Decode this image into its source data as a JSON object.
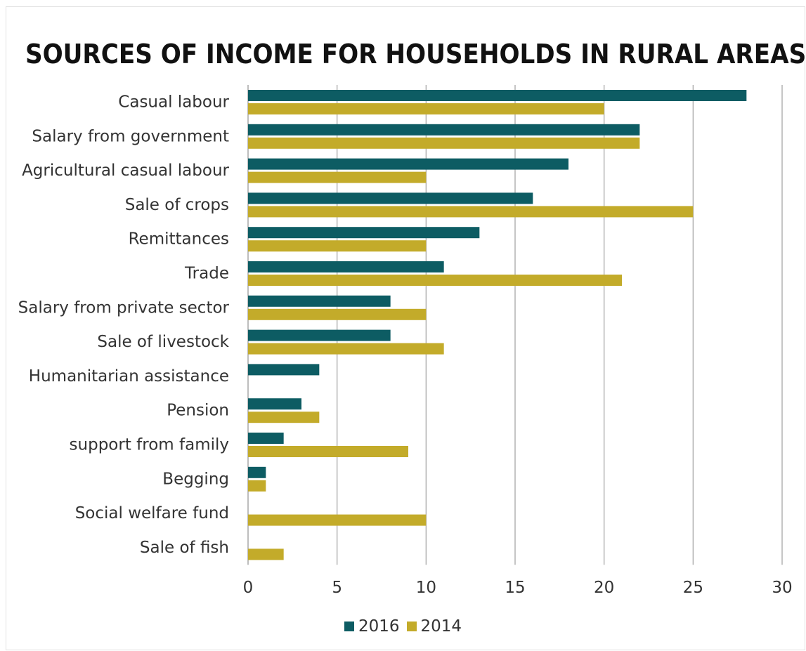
{
  "chart_data": {
    "type": "bar",
    "orientation": "horizontal",
    "title": "SOURCES OF INCOME FOR HOUSEHOLDS IN RURAL AREAS",
    "categories": [
      "Casual labour",
      "Salary from government",
      "Agricultural casual labour",
      "Sale of crops",
      "Remittances",
      "Trade",
      "Salary from private sector",
      "Sale of livestock",
      "Humanitarian assistance",
      "Pension",
      "support from family",
      "Begging",
      "Social welfare fund",
      "Sale of fish"
    ],
    "series": [
      {
        "name": "2016",
        "color": "#0d5c63",
        "values": [
          28,
          22,
          18,
          16,
          13,
          11,
          8,
          8,
          4,
          3,
          2,
          1,
          0,
          0
        ]
      },
      {
        "name": "2014",
        "color": "#c3ab2a",
        "values": [
          20,
          22,
          10,
          25,
          10,
          21,
          10,
          11,
          0,
          4,
          9,
          1,
          10,
          2
        ]
      }
    ],
    "xlim": [
      0,
      30
    ],
    "xticks": [
      0,
      5,
      10,
      15,
      20,
      25,
      30
    ],
    "grid": true,
    "legend_position": "bottom"
  }
}
